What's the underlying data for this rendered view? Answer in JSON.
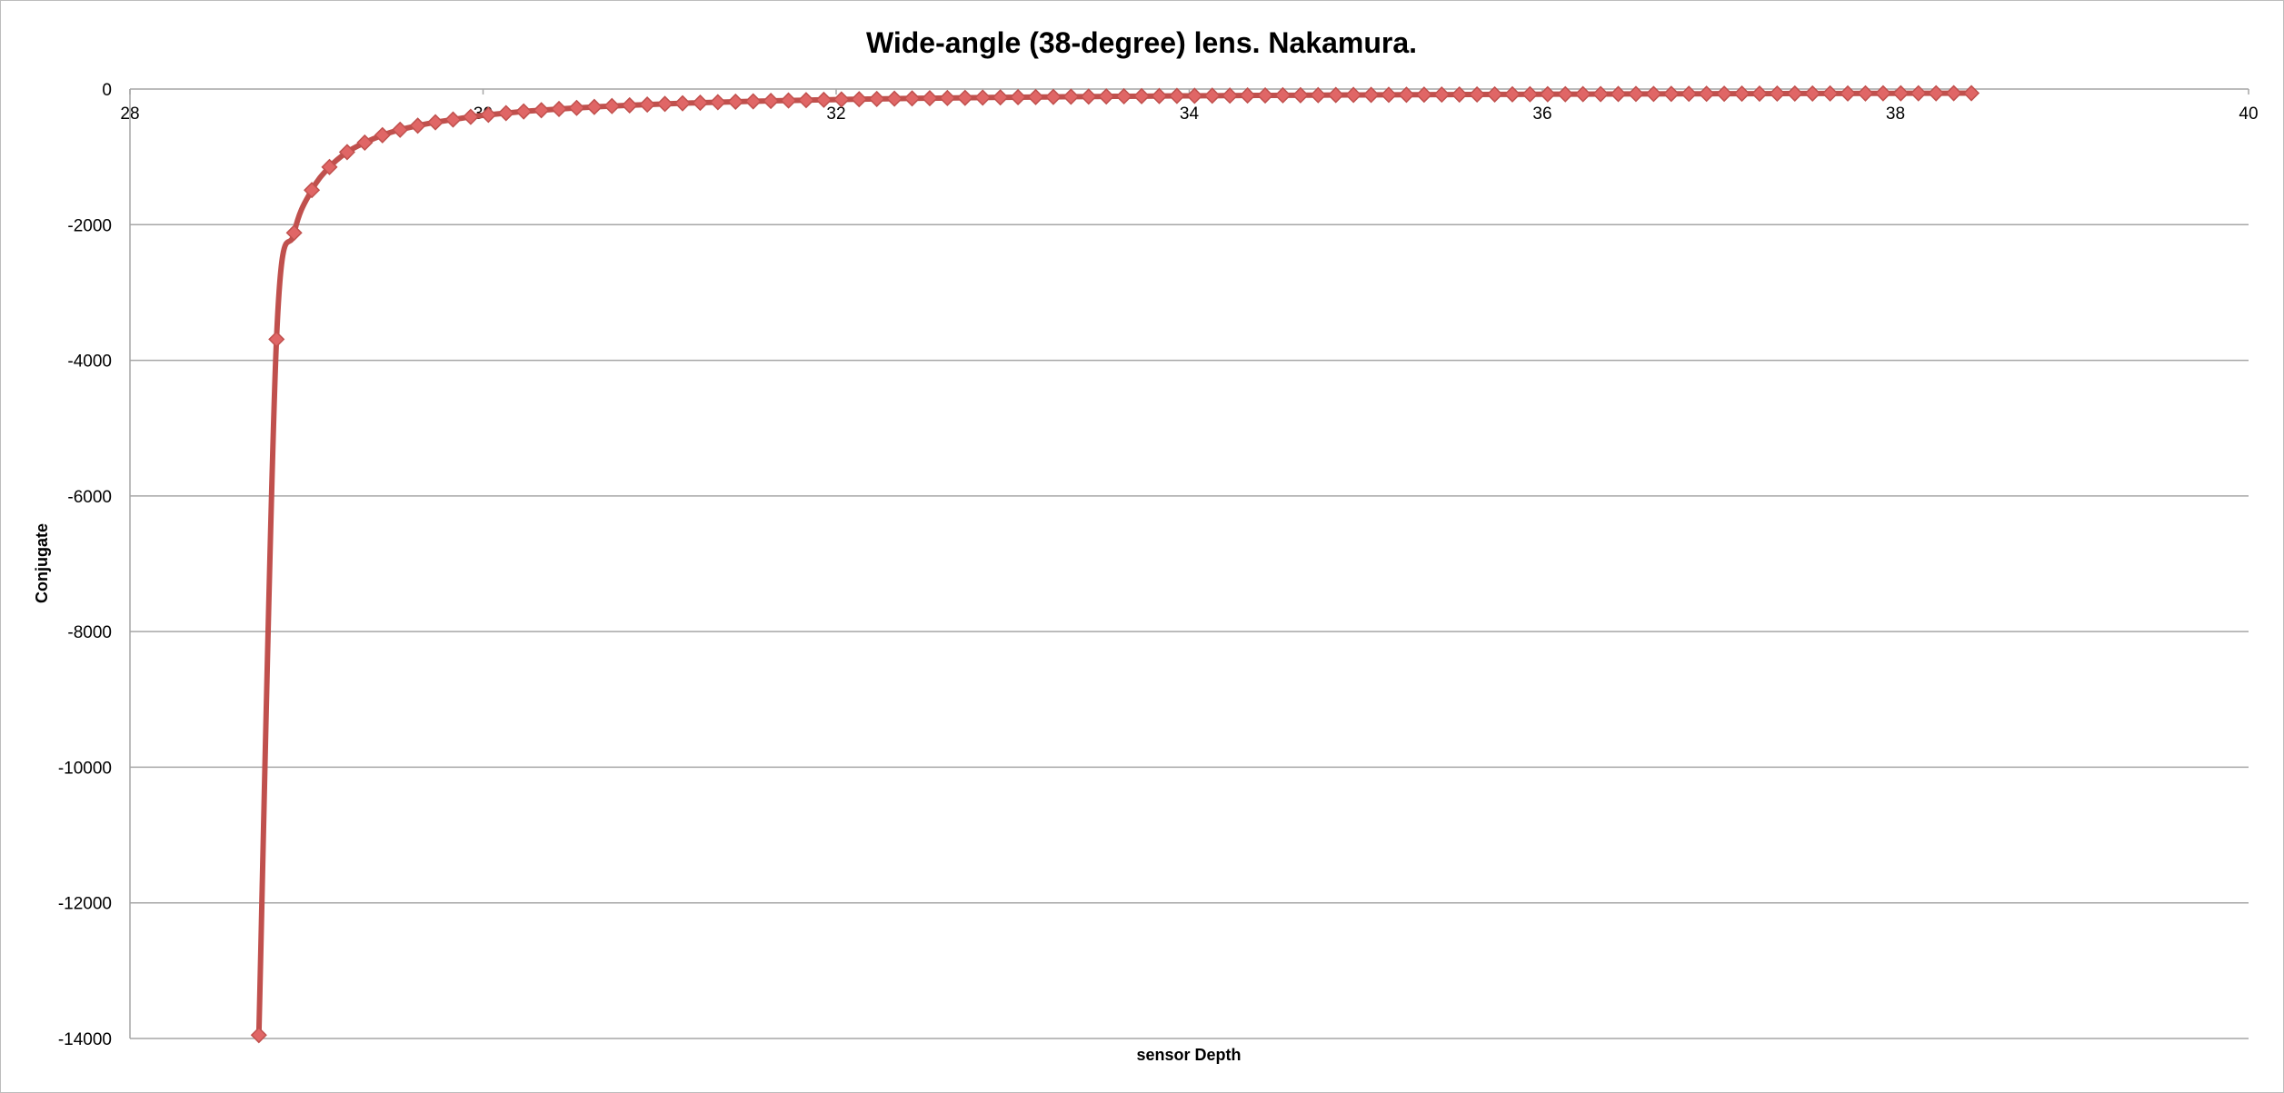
{
  "chart_data": {
    "type": "scatter",
    "title": "Wide-angle (38-degree) lens. Nakamura.",
    "xlabel": "sensor Depth",
    "ylabel": "Conjugate",
    "xlim": [
      28,
      40
    ],
    "ylim": [
      -14000,
      0
    ],
    "x_ticks": [
      "28",
      "30",
      "32",
      "34",
      "36",
      "38",
      "40"
    ],
    "y_ticks": [
      "0",
      "-2000",
      "-4000",
      "-6000",
      "-8000",
      "-10000",
      "-12000",
      "-14000"
    ],
    "grid": "horizontal",
    "legend": "none",
    "marker": "diamond",
    "line": "smooth",
    "series_color": "#c0504d",
    "marker_color": "#e06666",
    "series": [
      {
        "x": [
          28.73,
          28.83,
          28.93,
          29.03,
          29.13,
          29.23,
          29.33,
          29.43,
          29.53,
          29.63,
          29.73,
          29.83,
          29.93,
          30.03,
          30.13,
          30.23,
          30.33,
          30.43,
          30.53,
          30.63,
          30.73,
          30.83,
          30.93,
          31.03,
          31.13,
          31.23,
          31.33,
          31.43,
          31.53,
          31.63,
          31.73,
          31.83,
          31.93,
          32.03,
          32.13,
          32.23,
          32.33,
          32.43,
          32.53,
          32.63,
          32.73,
          32.83,
          32.93,
          33.03,
          33.13,
          33.23,
          33.33,
          33.43,
          33.53,
          33.63,
          33.73,
          33.83,
          33.93,
          34.03,
          34.13,
          34.23,
          34.33,
          34.43,
          34.53,
          34.63,
          34.73,
          34.83,
          34.93,
          35.03,
          35.13,
          35.23,
          35.33,
          35.43,
          35.53,
          35.63,
          35.73,
          35.83,
          35.93,
          36.03,
          36.13,
          36.23,
          36.33,
          36.43,
          36.53,
          36.63,
          36.73,
          36.83,
          36.93,
          37.03,
          37.13,
          37.23,
          37.33,
          37.43,
          37.53,
          37.63,
          37.73,
          37.83,
          37.93,
          38.03,
          38.13,
          38.23,
          38.33,
          38.43
        ],
        "y": [
          -13950,
          -3690,
          -2120,
          -1490,
          -1150,
          -930,
          -790,
          -680,
          -600,
          -540,
          -490,
          -450,
          -410,
          -380,
          -355,
          -330,
          -312,
          -294,
          -278,
          -264,
          -251,
          -240,
          -229,
          -219,
          -210,
          -202,
          -194,
          -187,
          -181,
          -175,
          -169,
          -164,
          -159,
          -154,
          -150,
          -146,
          -142,
          -138,
          -135,
          -132,
          -129,
          -126,
          -123,
          -120,
          -118,
          -116,
          -113,
          -111,
          -109,
          -107,
          -105,
          -103,
          -101,
          -100,
          -98,
          -97,
          -95,
          -94,
          -92,
          -91,
          -90,
          -88,
          -87,
          -86,
          -85,
          -84,
          -83,
          -82,
          -81,
          -80,
          -79,
          -78,
          -77,
          -76,
          -76,
          -75,
          -74,
          -73,
          -72,
          -72,
          -71,
          -70,
          -70,
          -69,
          -68,
          -68,
          -67,
          -66,
          -66,
          -65,
          -65,
          -64,
          -63,
          -63,
          -62,
          -62,
          -61,
          -61
        ]
      }
    ]
  }
}
